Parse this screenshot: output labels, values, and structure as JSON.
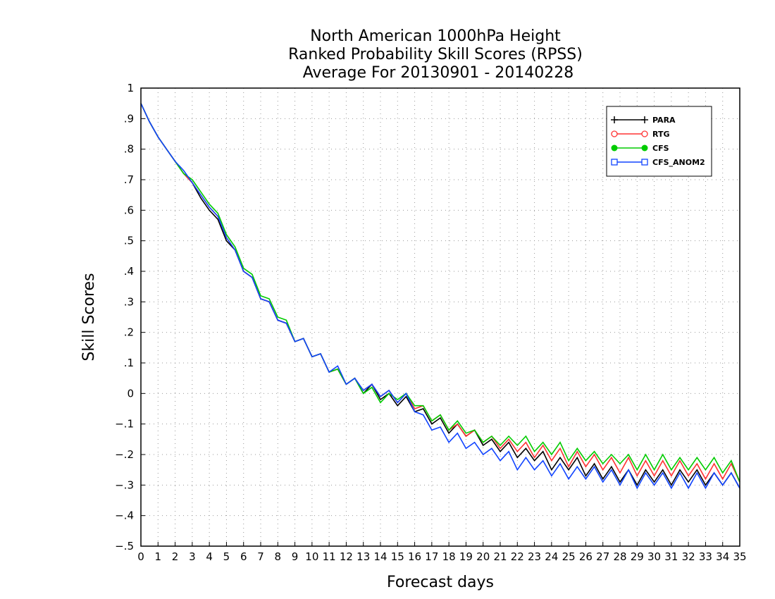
{
  "chart_data": {
    "type": "line",
    "title_lines": [
      "North American 1000hPa Height",
      "Ranked Probability Skill Scores (RPSS)",
      "Average For 20130901 - 20140228"
    ],
    "xlabel": "Forecast days",
    "ylabel": "Skill Scores",
    "xlim": [
      0,
      35
    ],
    "ylim": [
      -0.5,
      1
    ],
    "x_ticks": [
      0,
      1,
      2,
      3,
      4,
      5,
      6,
      7,
      8,
      9,
      10,
      11,
      12,
      13,
      14,
      15,
      16,
      17,
      18,
      19,
      20,
      21,
      22,
      23,
      24,
      25,
      26,
      27,
      28,
      29,
      30,
      31,
      32,
      33,
      34,
      35
    ],
    "y_ticks": [
      -0.5,
      -0.4,
      -0.3,
      -0.2,
      -0.1,
      0,
      0.1,
      0.2,
      0.3,
      0.4,
      0.5,
      0.6,
      0.7,
      0.8,
      0.9,
      1
    ],
    "grid": true,
    "legend_position": "top-right",
    "x": [
      0,
      0.5,
      1,
      1.5,
      2,
      2.5,
      3,
      3.5,
      4,
      4.5,
      5,
      5.5,
      6,
      6.5,
      7,
      7.5,
      8,
      8.5,
      9,
      9.5,
      10,
      10.5,
      11,
      11.5,
      12,
      12.5,
      13,
      13.5,
      14,
      14.5,
      15,
      15.5,
      16,
      16.5,
      17,
      17.5,
      18,
      18.5,
      19,
      19.5,
      20,
      20.5,
      21,
      21.5,
      22,
      22.5,
      23,
      23.5,
      24,
      24.5,
      25,
      25.5,
      26,
      26.5,
      27,
      27.5,
      28,
      28.5,
      29,
      29.5,
      30,
      30.5,
      31,
      31.5,
      32,
      32.5,
      33,
      33.5,
      34,
      34.5,
      35
    ],
    "series": [
      {
        "name": "PARA",
        "color": "#000000",
        "marker": "plus",
        "values": [
          0.95,
          0.89,
          0.84,
          0.8,
          0.76,
          0.72,
          0.69,
          0.64,
          0.6,
          0.57,
          0.5,
          0.47,
          0.4,
          0.38,
          0.31,
          0.3,
          0.24,
          0.23,
          0.17,
          0.18,
          0.12,
          0.13,
          0.07,
          0.08,
          0.03,
          0.05,
          0.0,
          0.03,
          -0.02,
          0.0,
          -0.04,
          -0.01,
          -0.06,
          -0.05,
          -0.1,
          -0.08,
          -0.13,
          -0.1,
          -0.14,
          -0.12,
          -0.17,
          -0.15,
          -0.19,
          -0.16,
          -0.21,
          -0.18,
          -0.22,
          -0.19,
          -0.25,
          -0.21,
          -0.25,
          -0.21,
          -0.27,
          -0.23,
          -0.28,
          -0.24,
          -0.29,
          -0.25,
          -0.3,
          -0.25,
          -0.29,
          -0.25,
          -0.3,
          -0.25,
          -0.29,
          -0.25,
          -0.3,
          -0.26,
          -0.3,
          -0.26,
          -0.31
        ]
      },
      {
        "name": "RTG",
        "color": "#ff3333",
        "marker": "circle-open",
        "values": [
          0.95,
          0.89,
          0.84,
          0.8,
          0.76,
          0.72,
          0.69,
          0.65,
          0.61,
          0.58,
          0.51,
          0.47,
          0.4,
          0.38,
          0.31,
          0.3,
          0.24,
          0.23,
          0.17,
          0.18,
          0.12,
          0.13,
          0.07,
          0.08,
          0.03,
          0.05,
          0.01,
          0.03,
          -0.01,
          0.01,
          -0.03,
          0.0,
          -0.05,
          -0.04,
          -0.09,
          -0.07,
          -0.12,
          -0.1,
          -0.14,
          -0.12,
          -0.16,
          -0.14,
          -0.18,
          -0.15,
          -0.19,
          -0.16,
          -0.21,
          -0.17,
          -0.22,
          -0.18,
          -0.24,
          -0.19,
          -0.24,
          -0.2,
          -0.25,
          -0.21,
          -0.26,
          -0.21,
          -0.27,
          -0.22,
          -0.27,
          -0.22,
          -0.27,
          -0.22,
          -0.27,
          -0.23,
          -0.28,
          -0.23,
          -0.28,
          -0.23,
          -0.29
        ]
      },
      {
        "name": "CFS",
        "color": "#00cc00",
        "marker": "circle-filled",
        "values": [
          0.95,
          0.89,
          0.84,
          0.8,
          0.76,
          0.72,
          0.7,
          0.66,
          0.62,
          0.59,
          0.52,
          0.48,
          0.41,
          0.39,
          0.32,
          0.31,
          0.25,
          0.24,
          0.17,
          0.18,
          0.12,
          0.13,
          0.07,
          0.08,
          0.03,
          0.05,
          0.0,
          0.02,
          -0.03,
          0.0,
          -0.02,
          0.0,
          -0.04,
          -0.04,
          -0.09,
          -0.07,
          -0.12,
          -0.09,
          -0.13,
          -0.12,
          -0.16,
          -0.14,
          -0.17,
          -0.14,
          -0.17,
          -0.14,
          -0.19,
          -0.16,
          -0.2,
          -0.16,
          -0.22,
          -0.18,
          -0.22,
          -0.19,
          -0.23,
          -0.2,
          -0.23,
          -0.2,
          -0.25,
          -0.2,
          -0.25,
          -0.2,
          -0.25,
          -0.21,
          -0.25,
          -0.21,
          -0.25,
          -0.21,
          -0.26,
          -0.22,
          -0.29
        ]
      },
      {
        "name": "CFS_ANOM2",
        "color": "#1144ff",
        "marker": "square-open",
        "values": [
          0.95,
          0.89,
          0.84,
          0.8,
          0.76,
          0.73,
          0.69,
          0.65,
          0.61,
          0.58,
          0.51,
          0.47,
          0.4,
          0.38,
          0.31,
          0.3,
          0.24,
          0.23,
          0.17,
          0.18,
          0.12,
          0.13,
          0.07,
          0.09,
          0.03,
          0.05,
          0.01,
          0.03,
          -0.01,
          0.01,
          -0.03,
          0.0,
          -0.06,
          -0.07,
          -0.12,
          -0.11,
          -0.16,
          -0.13,
          -0.18,
          -0.16,
          -0.2,
          -0.18,
          -0.22,
          -0.19,
          -0.25,
          -0.21,
          -0.25,
          -0.22,
          -0.27,
          -0.23,
          -0.28,
          -0.24,
          -0.28,
          -0.24,
          -0.29,
          -0.25,
          -0.3,
          -0.25,
          -0.31,
          -0.26,
          -0.3,
          -0.26,
          -0.31,
          -0.26,
          -0.31,
          -0.26,
          -0.31,
          -0.26,
          -0.3,
          -0.26,
          -0.31
        ]
      }
    ]
  }
}
